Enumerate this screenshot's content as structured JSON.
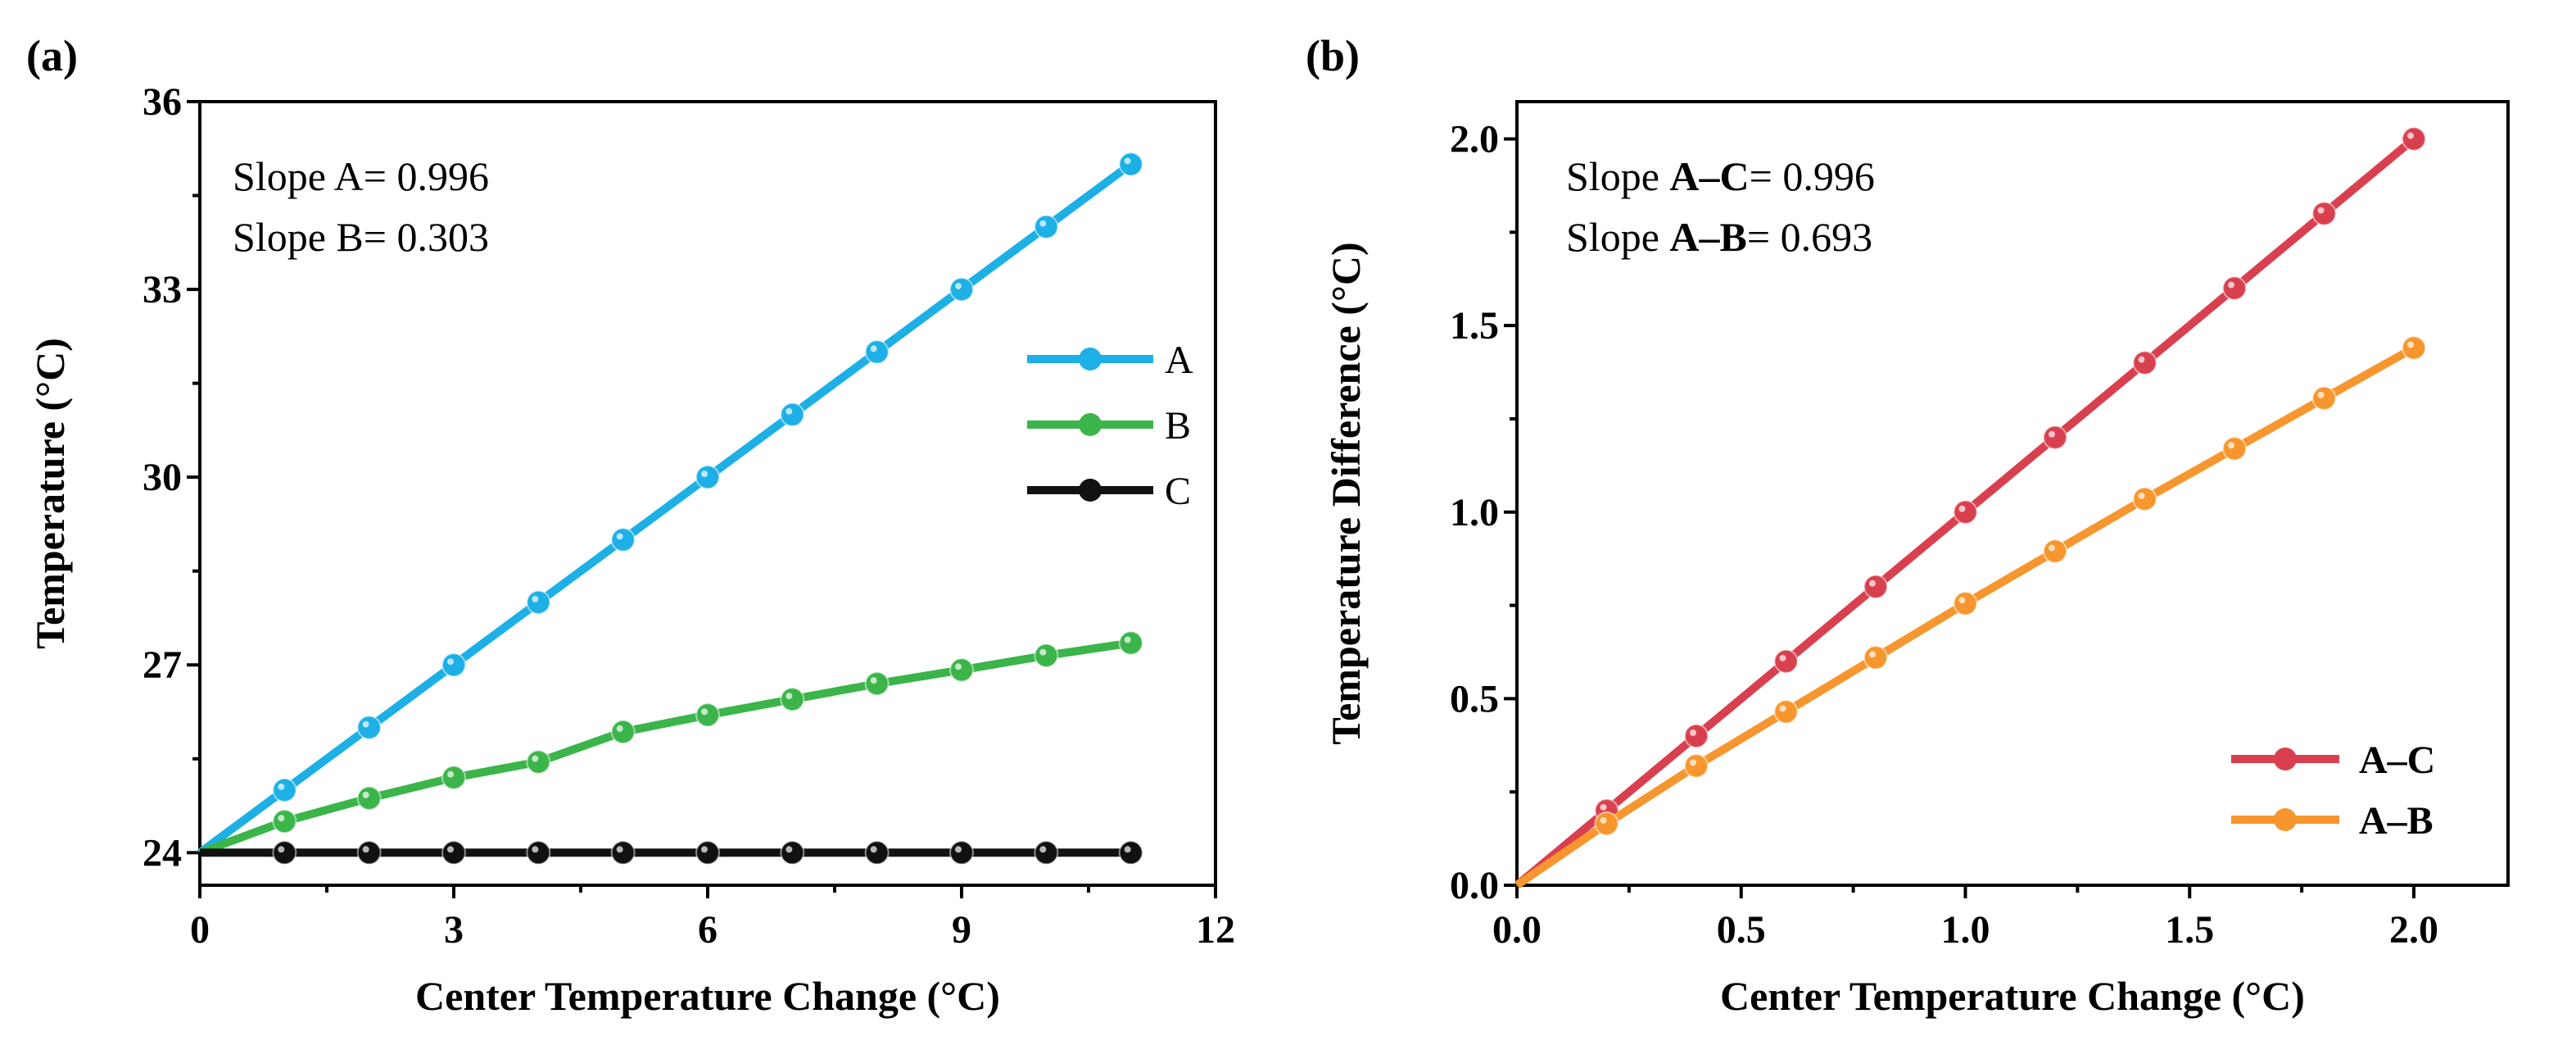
{
  "chart_data": [
    {
      "type": "line",
      "panel_label": "(a)",
      "title": "",
      "xlabel": "Center Temperature Change (°C)",
      "ylabel": "Temperature (°C)",
      "xlim": [
        0,
        12
      ],
      "ylim": [
        23.48,
        36
      ],
      "xticks": [
        0,
        3,
        6,
        9,
        12
      ],
      "xtick_labels": [
        "0",
        "3",
        "6",
        "9",
        "12"
      ],
      "yticks": [
        24,
        27,
        30,
        33,
        36
      ],
      "ytick_labels": [
        "24",
        "27",
        "30",
        "33",
        "36"
      ],
      "x_minor_step": 1.5,
      "y_minor_step": 1.5,
      "grid": false,
      "legend_placement": "center-right",
      "annotations": [
        {
          "parts": [
            {
              "text": "Slope A= 0.996",
              "bold": false
            }
          ]
        },
        {
          "parts": [
            {
              "text": "Slope B= 0.303",
              "bold": false
            }
          ]
        }
      ],
      "x": [
        0,
        1,
        2,
        3,
        4,
        5,
        6,
        7,
        8,
        9,
        10,
        11
      ],
      "series": [
        {
          "name": "A",
          "color": "#1cb0e6",
          "label_color": "#1cb0e6",
          "label_bold": false,
          "values": [
            24,
            25,
            26,
            27,
            28,
            29,
            30,
            31,
            32,
            33,
            34,
            35
          ]
        },
        {
          "name": "B",
          "color": "#3bb54a",
          "label_color": "#3bb54a",
          "label_bold": false,
          "values": [
            24,
            24.5,
            24.87,
            25.2,
            25.45,
            25.93,
            26.2,
            26.45,
            26.7,
            26.92,
            27.15,
            27.35
          ]
        },
        {
          "name": "C",
          "color": "#111111",
          "label_color": "#111111",
          "label_bold": false,
          "values": [
            24,
            24,
            24,
            24,
            24,
            24,
            24,
            24,
            24,
            24,
            24,
            24
          ]
        }
      ]
    },
    {
      "type": "line",
      "panel_label": "(b)",
      "title": "",
      "xlabel": "Center Temperature Change (°C)",
      "ylabel": "Temperature Difference (°C)",
      "xlim": [
        0,
        2.21
      ],
      "ylim": [
        0,
        2.1
      ],
      "xticks": [
        0,
        0.5,
        1.0,
        1.5,
        2.0
      ],
      "xtick_labels": [
        "0.0",
        "0.5",
        "1.0",
        "1.5",
        "2.0"
      ],
      "yticks": [
        0,
        0.5,
        1.0,
        1.5,
        2.0
      ],
      "ytick_labels": [
        "0.0",
        "0.5",
        "1.0",
        "1.5",
        "2.0"
      ],
      "x_minor_step": 0.25,
      "y_minor_step": 0.25,
      "grid": false,
      "legend_placement": "lower-right",
      "annotations": [
        {
          "parts": [
            {
              "text": "Slope ",
              "bold": false
            },
            {
              "text": "A–C",
              "bold": true
            },
            {
              "text": "= 0.996",
              "bold": false
            }
          ]
        },
        {
          "parts": [
            {
              "text": "Slope ",
              "bold": false
            },
            {
              "text": "A–B",
              "bold": true
            },
            {
              "text": "= 0.693",
              "bold": false
            }
          ]
        }
      ],
      "x": [
        0,
        0.2,
        0.4,
        0.6,
        0.8,
        1.0,
        1.2,
        1.4,
        1.6,
        1.8,
        2.0
      ],
      "series": [
        {
          "name": "A–C",
          "color": "#d9404f",
          "label_color": "#000000",
          "label_bold": true,
          "values": [
            0,
            0.2,
            0.4,
            0.6,
            0.8,
            1.0,
            1.2,
            1.4,
            1.6,
            1.8,
            2.0
          ]
        },
        {
          "name": "A–B",
          "color": "#f7962e",
          "label_color": "#000000",
          "label_bold": true,
          "values": [
            0,
            0.165,
            0.32,
            0.465,
            0.61,
            0.755,
            0.895,
            1.035,
            1.17,
            1.305,
            1.44
          ]
        }
      ]
    }
  ]
}
